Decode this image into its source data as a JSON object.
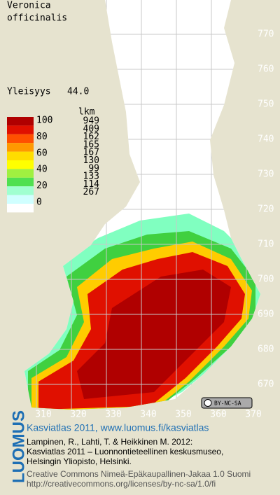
{
  "title": {
    "lines": [
      "Veronica",
      "officinalis"
    ]
  },
  "frequency": {
    "label": "Yleisyys",
    "value": "44.0"
  },
  "legend": {
    "count_header": "lkm",
    "scale_labels": [
      "100",
      "80",
      "60",
      "40",
      "20",
      "0"
    ],
    "counts": [
      "949",
      "409",
      "162",
      "165",
      "167",
      "130",
      "99",
      "133",
      "114",
      "267"
    ]
  },
  "grid": {
    "northing_labels": [
      "770",
      "760",
      "750",
      "740",
      "730",
      "720",
      "710",
      "700",
      "690",
      "680",
      "670"
    ],
    "easting_labels": [
      "310",
      "320",
      "330",
      "340",
      "350",
      "360",
      "370"
    ]
  },
  "license_badge": "BY-NC-SA",
  "footer": {
    "logo": "LUOMUS",
    "headline": "Kasviatlas 2011, www.luomus.fi/kasviatlas",
    "citation": [
      "Lampinen, R., Lahti, T. & Heikkinen M. 2012:",
      "Kasviatlas 2011 – Luonnontieteellinen keskusmuseo,",
      "Helsingin Yliopisto, Helsinki."
    ],
    "license": [
      "Creative Commons Nimeä-Epäkaupallinen-Jakaa 1.0 Suomi",
      "http://creativecommons.org/licenses/by-nc-sa/1.0/fi"
    ]
  }
}
